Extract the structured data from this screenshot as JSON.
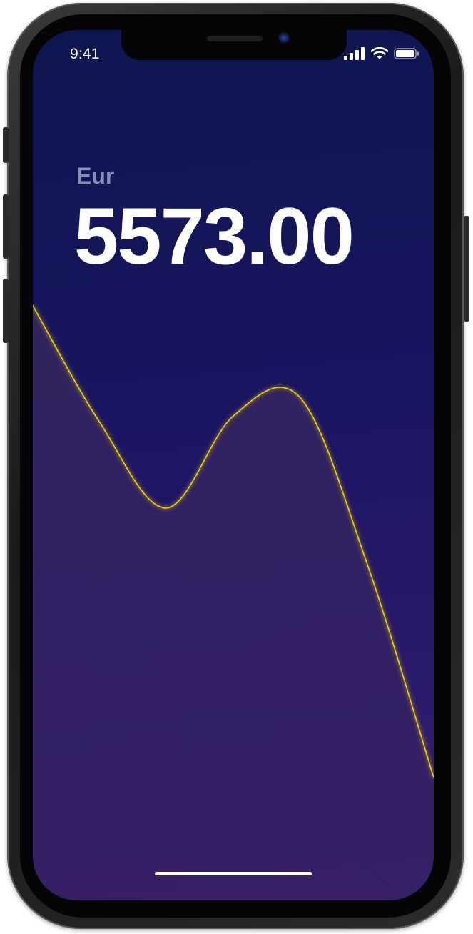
{
  "status_bar": {
    "time": "9:41",
    "signal_icon": "cellular-signal-icon",
    "wifi_icon": "wifi-icon",
    "battery_icon": "battery-icon"
  },
  "balance": {
    "currency": "Eur",
    "amount": "5573.00"
  },
  "chart_data": {
    "type": "area",
    "title": "",
    "xlabel": "",
    "ylabel": "",
    "x": [
      0,
      1,
      2,
      3,
      4,
      5,
      6
    ],
    "values": [
      0.97,
      0.78,
      0.64,
      0.79,
      0.82,
      0.55,
      0.2
    ],
    "line_color": "#f2d400",
    "fill_color": "#3a2a5e",
    "grid": false,
    "legend": "none"
  },
  "colors": {
    "background_top": "#0e1650",
    "background_bottom": "#3a1f6e",
    "accent_line": "#f2d400",
    "amount_text": "#ffffff",
    "currency_text": "#8a8db8"
  }
}
